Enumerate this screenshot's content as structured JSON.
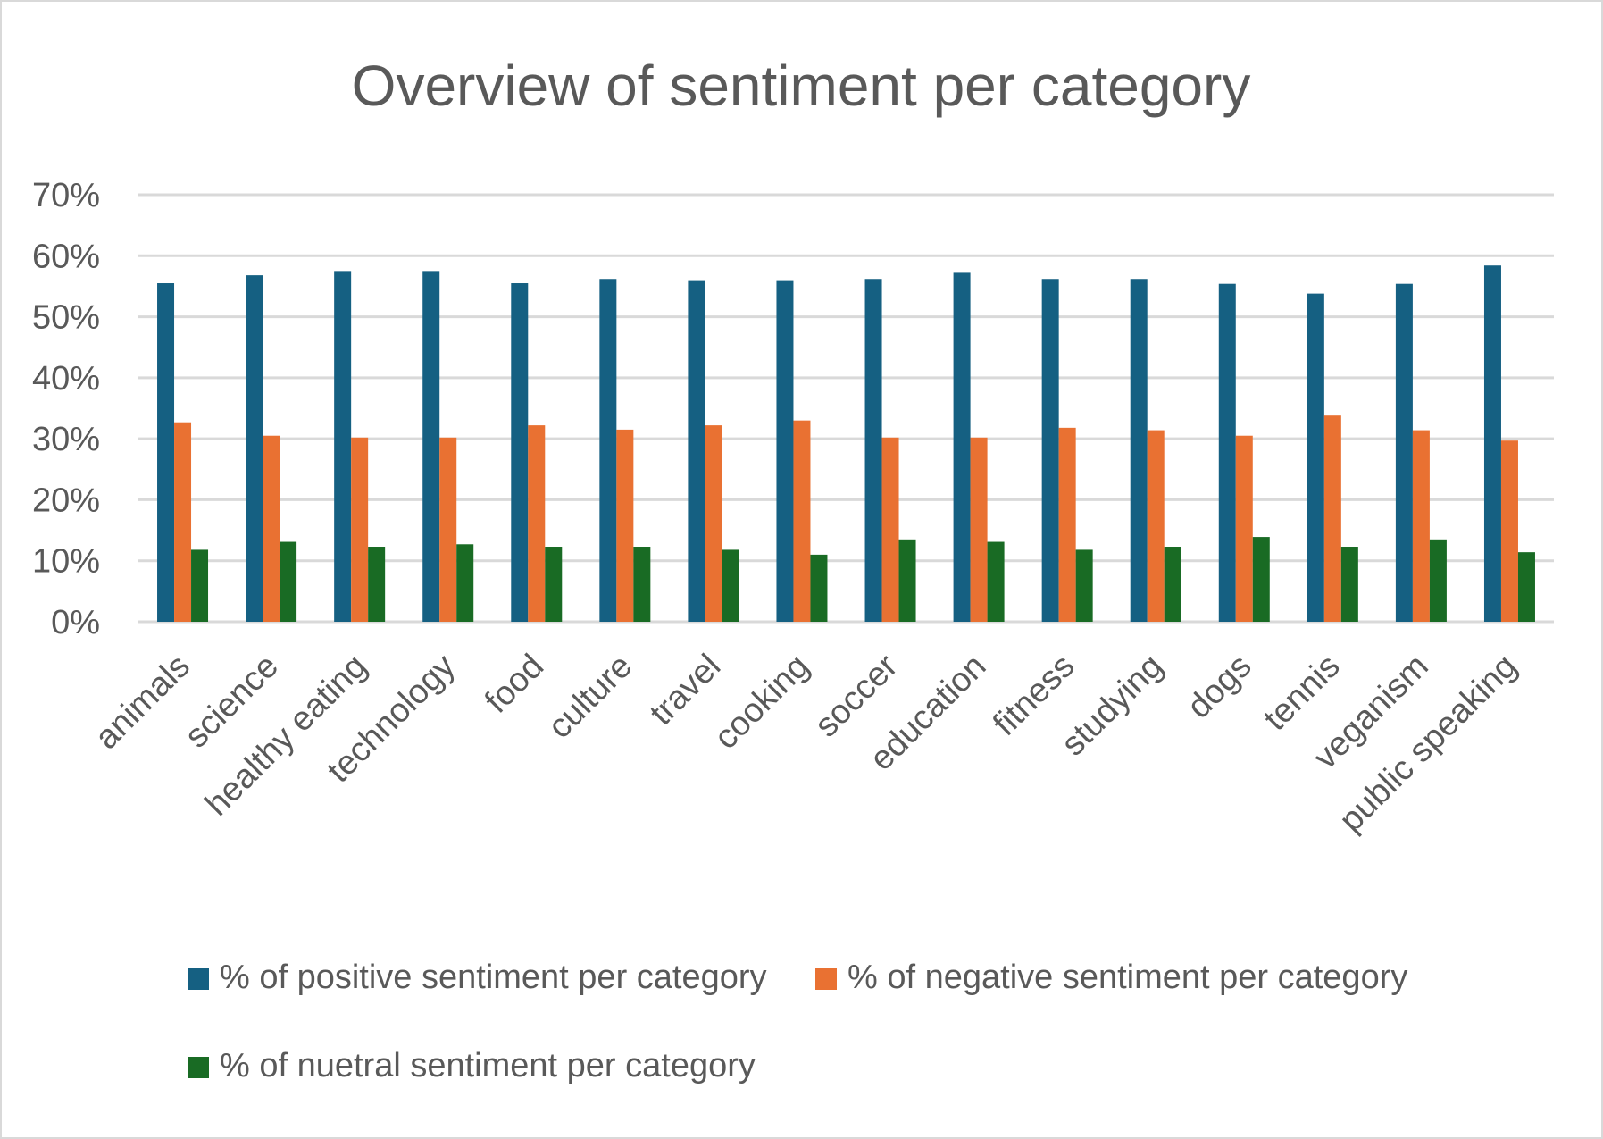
{
  "chart_data": {
    "type": "bar",
    "title": "Overview of sentiment per category",
    "xlabel": "",
    "ylabel": "",
    "ylim": [
      0,
      70
    ],
    "yticks": [
      0,
      10,
      20,
      30,
      40,
      50,
      60,
      70
    ],
    "ytick_labels": [
      "0%",
      "10%",
      "20%",
      "30%",
      "40%",
      "50%",
      "60%",
      "70%"
    ],
    "grid": true,
    "legend_position": "bottom",
    "categories": [
      "animals",
      "science",
      "healthy eating",
      "technology",
      "food",
      "culture",
      "travel",
      "cooking",
      "soccer",
      "education",
      "fitness",
      "studying",
      "dogs",
      "tennis",
      "veganism",
      "public speaking"
    ],
    "series": [
      {
        "name": "% of positive sentiment per category",
        "color": "#156082",
        "values": [
          55.5,
          56.8,
          57.5,
          57.5,
          55.5,
          56.2,
          56.0,
          56.0,
          56.2,
          57.2,
          56.2,
          56.2,
          55.4,
          53.8,
          55.4,
          58.4
        ]
      },
      {
        "name": "% of negative sentiment per category",
        "color": "#E97132",
        "values": [
          32.7,
          30.5,
          30.2,
          30.2,
          32.2,
          31.5,
          32.2,
          33.0,
          30.2,
          30.2,
          31.8,
          31.4,
          30.5,
          33.8,
          31.4,
          29.7
        ]
      },
      {
        "name": "% of nuetral sentiment per category",
        "color": "#196B24",
        "values": [
          11.8,
          13.1,
          12.3,
          12.7,
          12.3,
          12.3,
          11.8,
          11.0,
          13.5,
          13.1,
          11.8,
          12.3,
          13.9,
          12.3,
          13.5,
          11.4
        ]
      }
    ]
  }
}
